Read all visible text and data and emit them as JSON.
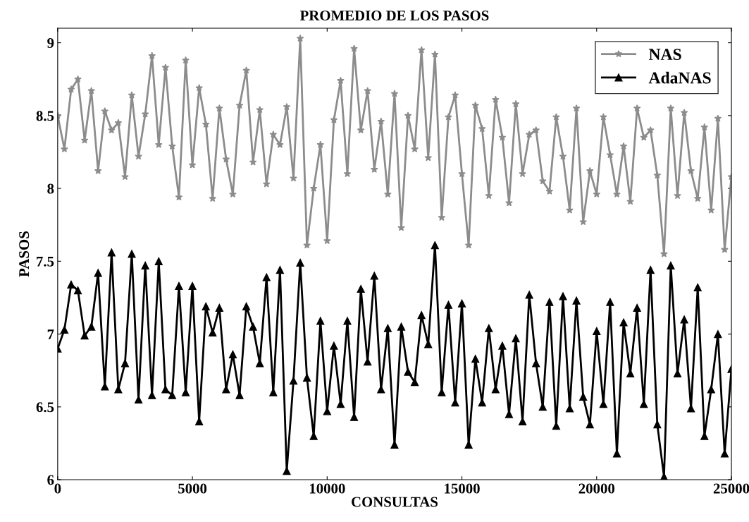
{
  "chart_data": {
    "type": "line",
    "title": "PROMEDIO DE LOS PASOS",
    "xlabel": "CONSULTAS",
    "ylabel": "PASOS",
    "x": [
      0,
      250,
      500,
      750,
      1000,
      1250,
      1500,
      1750,
      2000,
      2250,
      2500,
      2750,
      3000,
      3250,
      3500,
      3750,
      4000,
      4250,
      4500,
      4750,
      5000,
      5250,
      5500,
      5750,
      6000,
      6250,
      6500,
      6750,
      7000,
      7250,
      7500,
      7750,
      8000,
      8250,
      8500,
      8750,
      9000,
      9250,
      9500,
      9750,
      10000,
      10250,
      10500,
      10750,
      11000,
      11250,
      11500,
      11750,
      12000,
      12250,
      12500,
      12750,
      13000,
      13250,
      13500,
      13750,
      14000,
      14250,
      14500,
      14750,
      15000,
      15250,
      15500,
      15750,
      16000,
      16250,
      16500,
      16750,
      17000,
      17250,
      17500,
      17750,
      18000,
      18250,
      18500,
      18750,
      19000,
      19250,
      19500,
      19750,
      20000,
      20250,
      20500,
      20750,
      21000,
      21250,
      21500,
      21750,
      22000,
      22250,
      22500,
      22750,
      23000,
      23250,
      23500,
      23750,
      24000,
      24250,
      24500,
      24750,
      25000
    ],
    "series": [
      {
        "name": "NAS",
        "color": "#8c8c8c",
        "marker": "star",
        "values": [
          8.5,
          8.27,
          8.68,
          8.75,
          8.33,
          8.67,
          8.12,
          8.53,
          8.4,
          8.45,
          8.08,
          8.64,
          8.22,
          8.51,
          8.91,
          8.3,
          8.83,
          8.29,
          7.94,
          8.88,
          8.16,
          8.69,
          8.44,
          7.93,
          8.55,
          8.2,
          7.96,
          8.57,
          8.81,
          8.18,
          8.54,
          8.03,
          8.37,
          8.3,
          8.56,
          8.07,
          9.03,
          7.61,
          8.0,
          8.3,
          7.64,
          8.47,
          8.74,
          8.1,
          8.96,
          8.4,
          8.67,
          8.13,
          8.46,
          7.96,
          8.65,
          7.73,
          8.5,
          8.27,
          8.95,
          8.21,
          8.92,
          7.8,
          8.49,
          8.64,
          8.1,
          7.61,
          8.57,
          8.41,
          7.95,
          8.61,
          8.35,
          7.9,
          8.58,
          8.1,
          8.37,
          8.4,
          8.05,
          7.98,
          8.49,
          8.22,
          7.85,
          8.55,
          7.77,
          8.12,
          7.96,
          8.49,
          8.23,
          7.96,
          8.29,
          7.91,
          8.55,
          8.35,
          8.4,
          8.09,
          7.55,
          8.55,
          7.95,
          8.52,
          8.12,
          7.93,
          8.42,
          7.85,
          8.48,
          7.58,
          8.08
        ]
      },
      {
        "name": "AdaNAS",
        "color": "#000000",
        "marker": "triangle",
        "values": [
          6.9,
          7.03,
          7.34,
          7.3,
          6.99,
          7.05,
          7.42,
          6.64,
          7.56,
          6.62,
          6.8,
          7.55,
          6.55,
          7.47,
          6.58,
          7.5,
          6.62,
          6.58,
          7.33,
          6.6,
          7.33,
          6.4,
          7.19,
          7.01,
          7.18,
          6.62,
          6.86,
          6.58,
          7.19,
          7.05,
          6.8,
          7.39,
          6.6,
          7.44,
          6.06,
          6.68,
          7.49,
          6.7,
          6.3,
          7.09,
          6.47,
          6.92,
          6.52,
          7.09,
          6.43,
          7.31,
          6.81,
          7.4,
          6.62,
          7.04,
          6.24,
          7.05,
          6.74,
          6.67,
          7.13,
          6.93,
          7.61,
          6.6,
          7.2,
          6.53,
          7.21,
          6.24,
          6.83,
          6.53,
          7.04,
          6.62,
          6.92,
          6.45,
          6.97,
          6.4,
          7.27,
          6.8,
          6.5,
          7.22,
          6.37,
          7.26,
          6.49,
          7.23,
          6.57,
          6.38,
          7.02,
          6.52,
          7.22,
          6.18,
          7.08,
          6.73,
          7.18,
          6.52,
          7.44,
          6.38,
          6.02,
          7.47,
          6.73,
          7.1,
          6.49,
          7.32,
          6.3,
          6.62,
          7.0,
          6.18,
          6.76
        ]
      }
    ],
    "xlim": [
      0,
      25000
    ],
    "xticks": [
      0,
      5000,
      10000,
      15000,
      20000,
      25000
    ],
    "ylim": [
      6,
      9.1
    ],
    "yticks": [
      6,
      6.5,
      7,
      7.5,
      8,
      8.5,
      9
    ],
    "grid": false,
    "legend": "top right",
    "line_style": "solid"
  }
}
